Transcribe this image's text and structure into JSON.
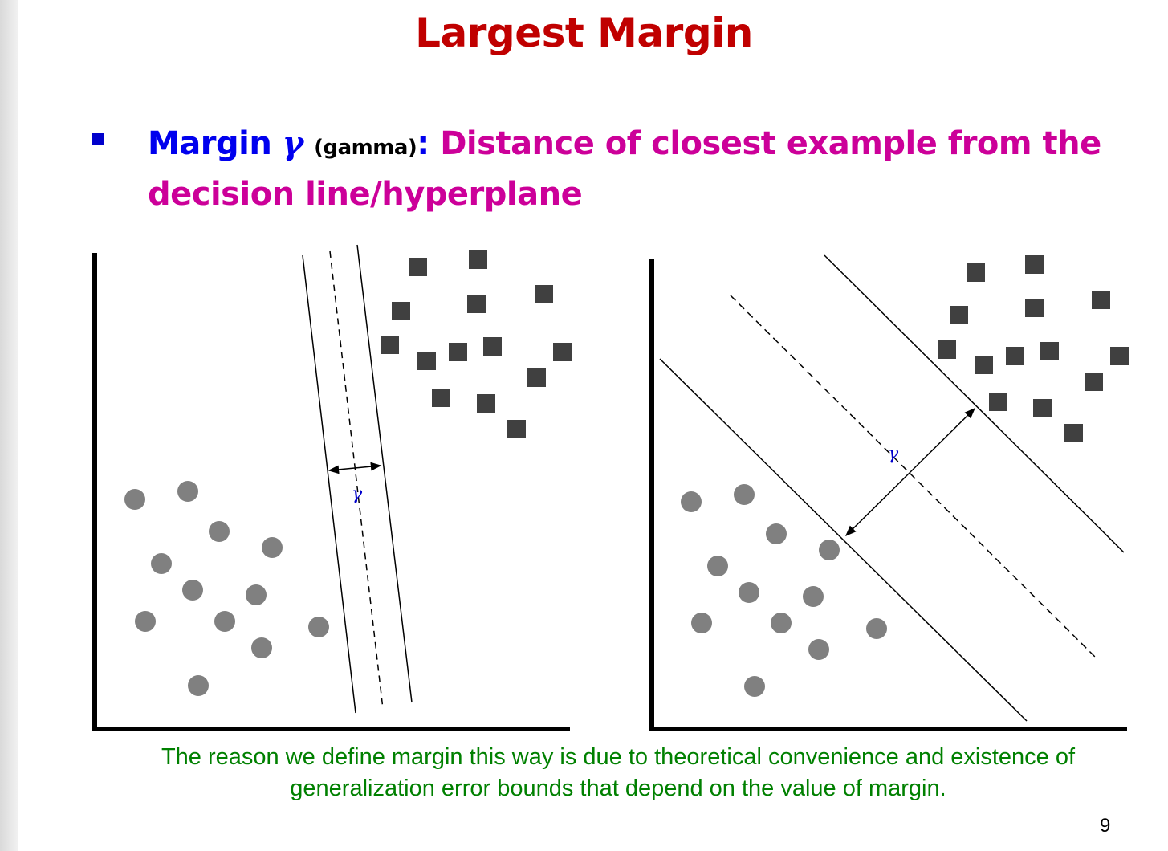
{
  "slide": {
    "title": "Largest Margin",
    "bullet": {
      "term": "Margin",
      "symbol": "γ",
      "paren": "(gamma)",
      "colon": ":",
      "definition": "Distance of closest example from the decision line/hyperplane"
    },
    "caption": "The reason we define margin this way is due to theoretical convenience and existence of generalization error bounds that depend on the value of margin.",
    "page_number": "9"
  },
  "figure": {
    "gamma_label": "γ",
    "colors": {
      "circle": "#808080",
      "square": "#404040",
      "axis": "#000000",
      "gamma": "#0000cc"
    },
    "panels": [
      {
        "name": "small-margin-panel",
        "gamma_label": "γ"
      },
      {
        "name": "large-margin-panel",
        "gamma_label": "γ"
      }
    ]
  }
}
